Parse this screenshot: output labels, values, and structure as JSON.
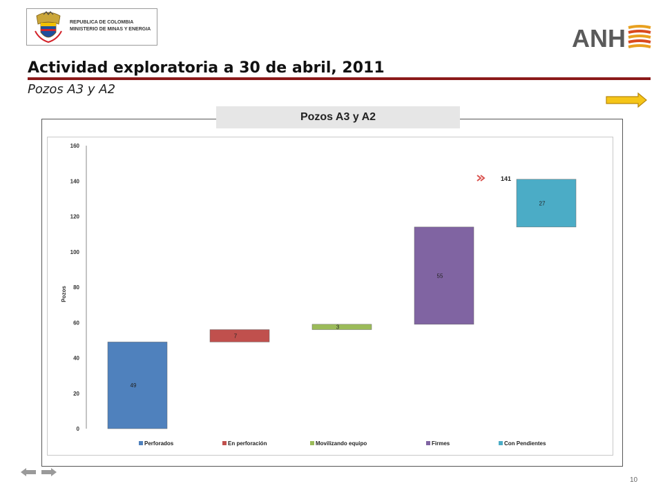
{
  "header": {
    "org_line1": "REPUBLICA DE COLOMBIA",
    "org_line2": "MINISTERIO DE MINAS Y ENERGIA",
    "logo_text": "ANH"
  },
  "slide": {
    "title": "Actividad exploratoria a 30 de abril, 2011",
    "subtitle": "Pozos A3 y A2",
    "chart_header": "Pozos  A3 y A2",
    "page_number": "10"
  },
  "colors": {
    "rule": "#8b1a1a",
    "arrow": "#f5c518"
  },
  "chart_data": {
    "type": "bar",
    "subtype": "waterfall",
    "categories": [
      "Perforados",
      "En perforación",
      "Movilizando equipo",
      "Firmes",
      "Con Pendientes"
    ],
    "series": [
      {
        "name": "Perforados",
        "base": 0,
        "value": 49,
        "label": "49",
        "color": "#4f81bd"
      },
      {
        "name": "En perforación",
        "base": 49,
        "value": 7,
        "label": "7",
        "color": "#c0504d"
      },
      {
        "name": "Movilizando equipo",
        "base": 56,
        "value": 3,
        "label": "3",
        "color": "#9bbb59"
      },
      {
        "name": "Firmes",
        "base": 59,
        "value": 55,
        "label": "55",
        "color": "#8064a2"
      },
      {
        "name": "Con Pendientes",
        "base": 114,
        "value": 27,
        "label": "27",
        "color": "#4bacc6"
      }
    ],
    "total_label": "141",
    "ylabel": "Pozos",
    "ylim": [
      0,
      160
    ],
    "yticks": [
      0,
      20,
      40,
      60,
      80,
      100,
      120,
      140,
      160
    ],
    "grid": false,
    "legend": "bottom"
  }
}
